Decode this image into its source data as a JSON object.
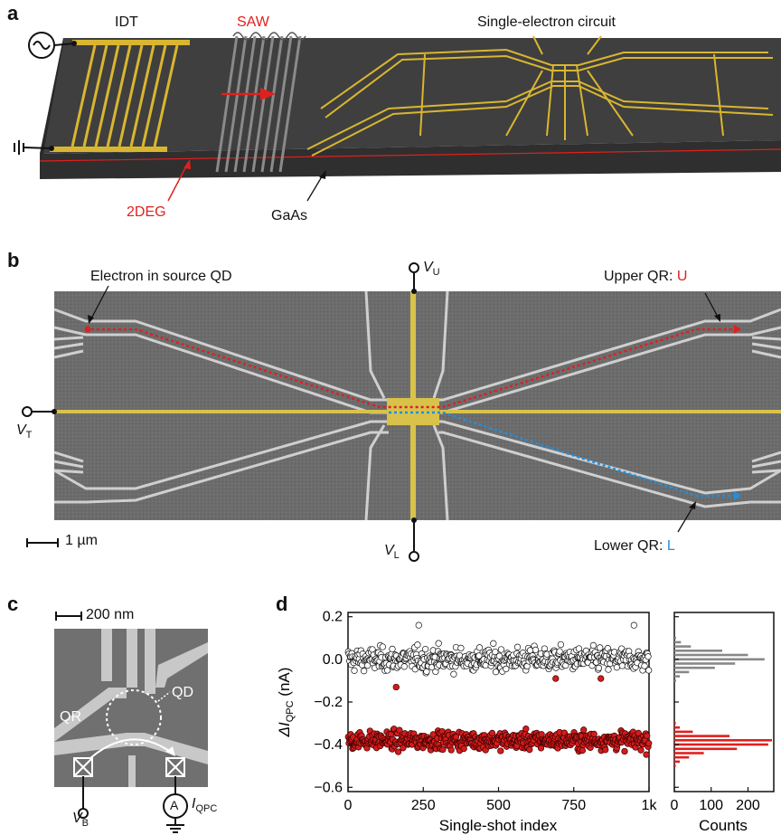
{
  "panel_a": {
    "letter": "a",
    "idt": "IDT",
    "saw": "SAW",
    "circuit": "Single-electron circuit",
    "twodeg": "2DEG",
    "gaas": "GaAs",
    "colors": {
      "gold": "#d9b630",
      "red": "#e0201e",
      "substrate": "#3d3d3d"
    }
  },
  "panel_b": {
    "letter": "b",
    "source_label": "Electron in source QD",
    "upper_label_prefix": "Upper QR: ",
    "upper_label_letter": "U",
    "lower_label_prefix": "Lower QR: ",
    "lower_label_letter": "L",
    "vu_main": "V",
    "vu_sub": "U",
    "vt_main": "V",
    "vt_sub": "T",
    "vl_main": "V",
    "vl_sub": "L",
    "scale": "1 µm",
    "colors": {
      "gate": "#d9c24a",
      "upper_path": "#e0201e",
      "lower_path": "#1f8fe0",
      "sem": "#6e6e6e"
    }
  },
  "panel_c": {
    "letter": "c",
    "scale": "200 nm",
    "qd": "QD",
    "qr": "QR",
    "vb_main": "V",
    "vb_sub": "B",
    "iqpc_main": "I",
    "iqpc_sub": "QPC",
    "ammeter": "A"
  },
  "panel_d": {
    "letter": "d",
    "chart_data": [
      {
        "type": "scatter",
        "ylabel": "ΔI_QPC (nA)",
        "ylabel_main": "ΔI",
        "ylabel_sub": "QPC",
        "ylabel_unit": " (nA)",
        "xlabel": "Single-shot index",
        "xlim": [
          0,
          1000
        ],
        "ylim": [
          -0.62,
          0.22
        ],
        "x_ticks": [
          "0",
          "250",
          "500",
          "750",
          "1k"
        ],
        "y_ticks": [
          "0.2",
          "0.0",
          "−0.2",
          "−0.4",
          "−0.6"
        ],
        "series": [
          {
            "color": "#ffffff",
            "count": 500,
            "mean": 0.0,
            "spread": 0.045,
            "outliers": [
              {
                "x": 235,
                "y": 0.16
              },
              {
                "x": 950,
                "y": 0.16
              }
            ]
          },
          {
            "color": "#d41c1c",
            "count": 500,
            "mean": -0.38,
            "spread": 0.035,
            "outliers": [
              {
                "x": 160,
                "y": -0.13
              },
              {
                "x": 690,
                "y": -0.09
              },
              {
                "x": 840,
                "y": -0.09
              }
            ]
          }
        ]
      },
      {
        "type": "bar",
        "orientation": "horizontal",
        "xlabel": "Counts",
        "xlim": [
          0,
          270
        ],
        "ylim": [
          -0.62,
          0.22
        ],
        "x_ticks": [
          "0",
          "100",
          "200"
        ],
        "series": [
          {
            "color": "#888888",
            "bins": [
              -0.1,
              -0.08,
              -0.06,
              -0.04,
              -0.02,
              0.0,
              0.02,
              0.04,
              0.06,
              0.08,
              0.1
            ],
            "counts": [
              5,
              15,
              40,
              110,
              165,
              245,
              200,
              130,
              45,
              18,
              5
            ]
          },
          {
            "color": "#e0201e",
            "bins": [
              -0.5,
              -0.48,
              -0.46,
              -0.44,
              -0.42,
              -0.4,
              -0.38,
              -0.36,
              -0.34,
              -0.32,
              -0.3
            ],
            "counts": [
              4,
              15,
              40,
              80,
              170,
              255,
              265,
              150,
              50,
              15,
              4
            ]
          }
        ]
      }
    ]
  }
}
